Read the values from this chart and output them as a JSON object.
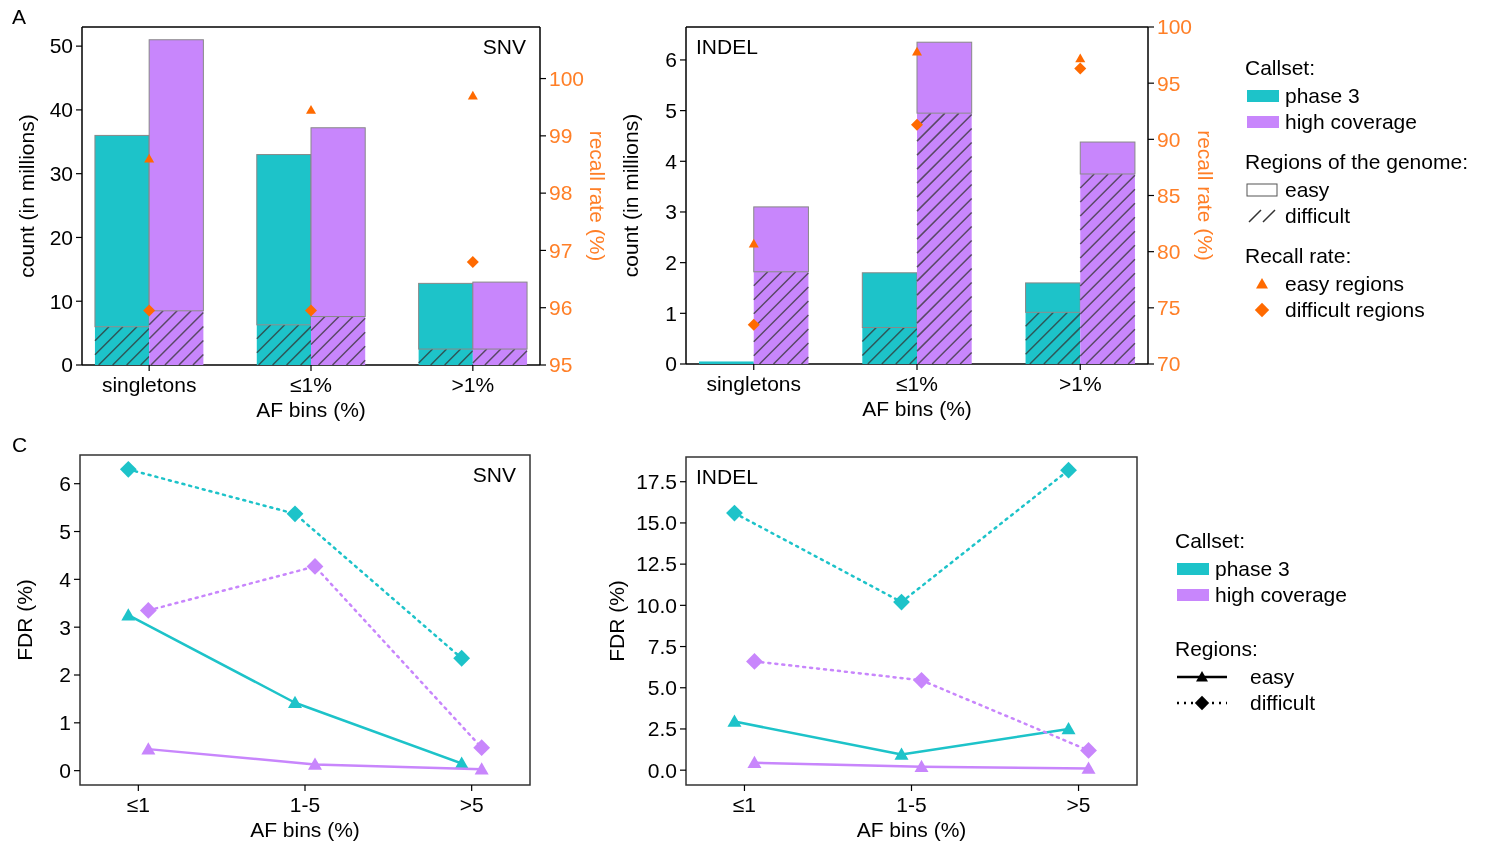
{
  "chart_data": [
    {
      "type": "bar",
      "title": "SNV",
      "xlabel": "AF bins (%)",
      "ylabel": "count (in millions)",
      "y2label": "recall rate (%)",
      "categories": [
        "singletons",
        "≤1%",
        ">1%"
      ],
      "ylim": [
        0,
        53
      ],
      "yticks": [
        0,
        10,
        20,
        30,
        40,
        50
      ],
      "y2lim": [
        95,
        100.9
      ],
      "y2ticks": [
        95,
        96,
        97,
        98,
        99,
        100
      ],
      "annotations": [
        "A"
      ],
      "series": [
        {
          "type": "bar",
          "color": "#1dc3c9",
          "base": [
            0,
            0,
            0
          ],
          "values": [
            6,
            6.3,
            2.5
          ]
        },
        {
          "type": "bar",
          "color": "#1dc3c9",
          "base": [
            6,
            6.3,
            2.5
          ],
          "values": [
            30,
            26.7,
            10.3
          ]
        },
        {
          "type": "bar",
          "color": "#c886fc",
          "base": [
            0,
            0,
            0
          ],
          "values": [
            8.5,
            7.6,
            2.5
          ]
        },
        {
          "type": "bar",
          "color": "#c886fc",
          "base": [
            8.5,
            7.6,
            2.5
          ],
          "values": [
            42.5,
            29.6,
            10.5
          ]
        },
        {
          "type": "scatter",
          "axis": "y2",
          "marker": "triangle",
          "color": "#ff6a00",
          "values": [
            98.6,
            99.45,
            99.7
          ]
        },
        {
          "type": "scatter",
          "axis": "y2",
          "marker": "diamond",
          "color": "#ff6a00",
          "values": [
            95.95,
            95.95,
            96.8
          ]
        }
      ]
    },
    {
      "type": "bar",
      "title": "INDEL",
      "xlabel": "AF bins (%)",
      "ylabel": "count (in millions)",
      "y2label": "recall rate (%)",
      "categories": [
        "singletons",
        "≤1%",
        ">1%"
      ],
      "ylim": [
        0,
        6.65
      ],
      "yticks": [
        0,
        1,
        2,
        3,
        4,
        5,
        6
      ],
      "y2lim": [
        70,
        100
      ],
      "y2ticks": [
        70,
        75,
        80,
        85,
        90,
        95,
        100
      ],
      "legend": "right",
      "legend_title": "Callset:",
      "annotations": [
        "Regions of the genome:",
        "easy",
        "difficult",
        "Recall rate:"
      ],
      "series": [
        {
          "type": "bar",
          "color": "#1dc3c9",
          "base": [
            null,
            0,
            0
          ],
          "values": [
            null,
            0.72,
            1.02
          ]
        },
        {
          "type": "bar",
          "name": "phase 3",
          "color": "#1dc3c9",
          "base": [
            0,
            0.72,
            1.02
          ],
          "values": [
            0.05,
            1.08,
            0.58
          ]
        },
        {
          "type": "bar",
          "color": "#c886fc",
          "base": [
            0,
            0,
            0
          ],
          "values": [
            1.82,
            4.95,
            3.75
          ]
        },
        {
          "type": "bar",
          "name": "high coverage",
          "color": "#c886fc",
          "base": [
            1.82,
            4.95,
            3.75
          ],
          "values": [
            1.28,
            1.4,
            0.63
          ]
        },
        {
          "type": "scatter",
          "name": "easy regions",
          "axis": "y2",
          "marker": "triangle",
          "color": "#ff6a00",
          "values": [
            80.7,
            97.8,
            97.2
          ]
        },
        {
          "type": "scatter",
          "name": "difficult regions",
          "axis": "y2",
          "marker": "diamond",
          "color": "#ff6a00",
          "values": [
            73.5,
            91.3,
            96.3
          ]
        }
      ]
    },
    {
      "type": "line",
      "title": "SNV",
      "xlabel": "AF bins (%)",
      "ylabel": "FDR (%)",
      "categories": [
        "≤1",
        "1-5",
        ">5"
      ],
      "ylim": [
        -0.3,
        6.6
      ],
      "yticks": [
        0,
        1,
        2,
        3,
        4,
        5,
        6
      ],
      "annotations": [
        "C"
      ],
      "series": [
        {
          "color": "#1dc3c9",
          "marker": "diamond",
          "line_style": "dotted",
          "values": [
            6.3,
            5.37,
            2.35
          ]
        },
        {
          "color": "#1dc3c9",
          "marker": "triangle",
          "line_style": "solid",
          "values": [
            3.25,
            1.42,
            0.15
          ]
        },
        {
          "color": "#c886fc",
          "marker": "diamond",
          "line_style": "dotted",
          "values": [
            3.35,
            4.27,
            0.48
          ]
        },
        {
          "color": "#c886fc",
          "marker": "triangle",
          "line_style": "solid",
          "values": [
            0.45,
            0.13,
            0.03
          ]
        }
      ]
    },
    {
      "type": "line",
      "title": "INDEL",
      "xlabel": "AF bins (%)",
      "ylabel": "FDR (%)",
      "categories": [
        "≤1",
        "1-5",
        ">5"
      ],
      "ylim": [
        -0.9,
        19
      ],
      "yticks": [
        {
          "value": 0,
          "label": "0.0"
        },
        2.5,
        {
          "value": 5,
          "label": "5.0"
        },
        7.5,
        {
          "value": 10,
          "label": "10.0"
        },
        12.5,
        {
          "value": 15,
          "label": "15.0"
        },
        17.5
      ],
      "annotations": [
        "Callset:",
        "phase 3",
        "high coverage",
        "Regions:",
        "easy",
        "difficult"
      ],
      "series": [
        {
          "color": "#1dc3c9",
          "marker": "diamond",
          "line_style": "dotted",
          "values": [
            15.6,
            10.2,
            18.2
          ]
        },
        {
          "color": "#1dc3c9",
          "marker": "triangle",
          "line_style": "solid",
          "values": [
            2.95,
            0.95,
            2.5
          ]
        },
        {
          "color": "#c886fc",
          "marker": "diamond",
          "line_style": "dotted",
          "values": [
            6.6,
            5.45,
            1.2
          ]
        },
        {
          "color": "#c886fc",
          "marker": "triangle",
          "line_style": "solid",
          "values": [
            0.45,
            0.2,
            0.1
          ]
        }
      ]
    }
  ]
}
